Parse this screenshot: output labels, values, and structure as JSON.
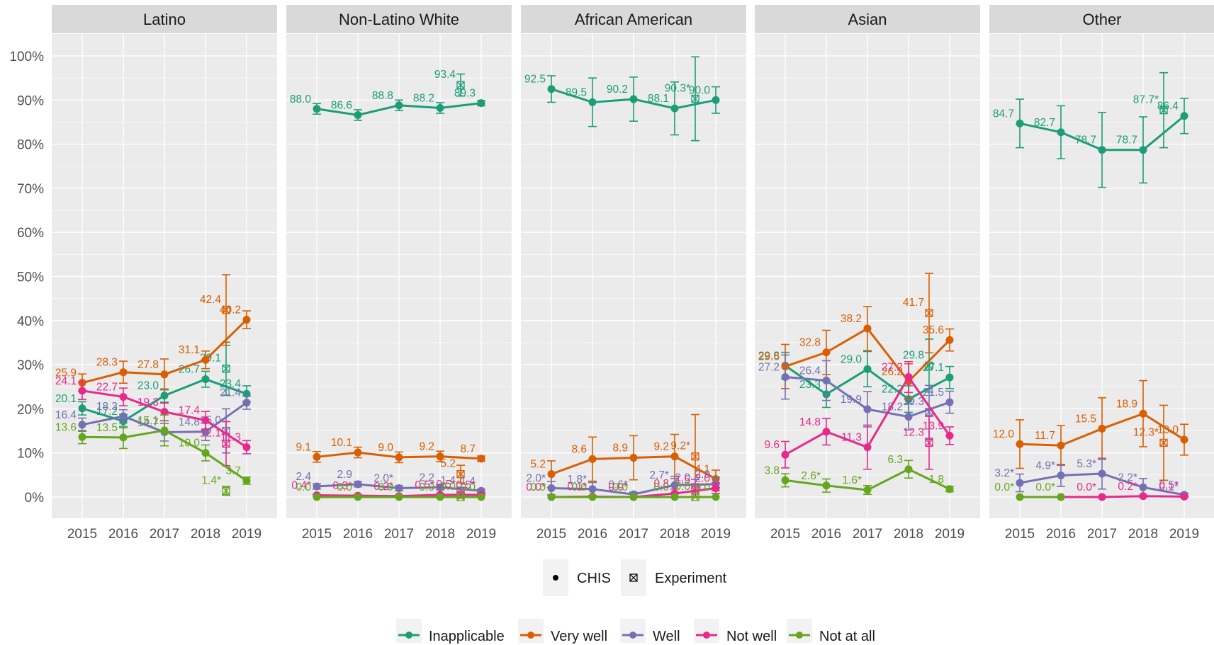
{
  "chart_data": {
    "type": "line",
    "ylim": [
      0,
      100
    ],
    "y_unit": "%",
    "y_ticks": [
      "0%",
      "10%",
      "20%",
      "30%",
      "40%",
      "50%",
      "60%",
      "70%",
      "80%",
      "90%",
      "100%"
    ],
    "x": [
      2015,
      2016,
      2017,
      2018,
      2019
    ],
    "x_tick_labels": [
      "2015",
      "2016",
      "2017",
      "2018",
      "2019"
    ],
    "grid": true,
    "facet_background": "#ebebeb",
    "strip_background": "#d9d9d9",
    "category_legend": {
      "position": "bottom",
      "items": [
        {
          "label": "Inapplicable",
          "color": "#1b9e77"
        },
        {
          "label": "Very well",
          "color": "#d95f02"
        },
        {
          "label": "Well",
          "color": "#7570b3"
        },
        {
          "label": "Not well",
          "color": "#e7298a"
        },
        {
          "label": "Not at all",
          "color": "#66a61e"
        }
      ]
    },
    "source_legend": {
      "position": "bottom",
      "items": [
        {
          "label": "CHIS",
          "icon": "filled-dot"
        },
        {
          "label": "Experiment",
          "icon": "boxed-x"
        }
      ]
    },
    "panels": [
      {
        "title": "Latino",
        "series": [
          {
            "name": "Inapplicable",
            "values": [
              20.1,
              17.2,
              23.0,
              26.7,
              23.4
            ],
            "labels": [
              "20.1",
              "17.2",
              "23.0",
              "26.7",
              "23.4"
            ],
            "err": [
              1.5,
              1.5,
              1.5,
              1.8,
              1.8
            ],
            "experiment": {
              "value": 29.1,
              "label": "29.1",
              "err": 6
            }
          },
          {
            "name": "Very well",
            "values": [
              25.9,
              28.3,
              27.8,
              31.1,
              40.2
            ],
            "labels": [
              "25.9",
              "28.3",
              "27.8",
              "31.1",
              "40.2"
            ],
            "err": [
              2,
              2.5,
              3.5,
              2,
              2
            ],
            "experiment": {
              "value": 42.4,
              "label": "42.4",
              "err": 8
            }
          },
          {
            "name": "Well",
            "values": [
              16.4,
              18.3,
              14.7,
              14.8,
              21.4
            ],
            "labels": [
              "16.4",
              "18.3",
              "14.7",
              "14.8",
              "21.4"
            ],
            "err": [
              1.5,
              1.5,
              2,
              2,
              1.5
            ],
            "experiment": {
              "value": 15.0,
              "label": "15.0",
              "err": 5
            }
          },
          {
            "name": "Not well",
            "values": [
              24.1,
              22.7,
              19.3,
              17.4,
              11.3
            ],
            "labels": [
              "24.1",
              "22.7",
              "19.3",
              "17.4",
              "11.3"
            ],
            "err": [
              2,
              2,
              2,
              2,
              1.5
            ],
            "experiment": {
              "value": 12.1,
              "label": "12.1",
              "err": 5
            }
          },
          {
            "name": "Not at all",
            "values": [
              13.6,
              13.5,
              15.1,
              10.0,
              3.7
            ],
            "labels": [
              "13.6",
              "13.5",
              "15.1",
              "10.0",
              "3.7"
            ],
            "err": [
              1.5,
              2.5,
              3.5,
              1.8,
              0.8
            ],
            "experiment": {
              "value": 1.4,
              "label": "1.4*",
              "err": 1
            }
          }
        ]
      },
      {
        "title": "Non-Latino White",
        "series": [
          {
            "name": "Inapplicable",
            "values": [
              88.0,
              86.6,
              88.8,
              88.2,
              89.3
            ],
            "labels": [
              "88.0",
              "86.6",
              "88.8",
              "88.2",
              "89.3"
            ],
            "err": [
              1.2,
              1.2,
              1.2,
              1.2,
              0.6
            ],
            "experiment": {
              "value": 93.4,
              "label": "93.4",
              "err": 2.5
            }
          },
          {
            "name": "Very well",
            "values": [
              9.1,
              10.1,
              9.0,
              9.2,
              8.7
            ],
            "labels": [
              "9.1",
              "10.1",
              "9.0",
              "9.2",
              "8.7"
            ],
            "err": [
              1.2,
              1.2,
              1.2,
              1.2,
              0.6
            ],
            "experiment": {
              "value": 5.2,
              "label": "5.2",
              "err": 2
            }
          },
          {
            "name": "Well",
            "values": [
              2.4,
              2.9,
              2.0,
              2.2,
              1.4
            ],
            "labels": [
              "2.4",
              "2.9",
              "2.0*",
              "2.2",
              "1.4"
            ],
            "err": [
              0.6,
              0.6,
              0.6,
              0.6,
              0.4
            ],
            "experiment": {
              "value": 1.4,
              "label": "1.4",
              "err": 0.8
            }
          },
          {
            "name": "Not well",
            "values": [
              0.4,
              0.3,
              0.2,
              0.5,
              0.5
            ],
            "labels": [
              "0.4*",
              "0.3*",
              "0.2*",
              "0.5*",
              "0.5*"
            ],
            "err": [
              0.2,
              0.2,
              0.2,
              0.2,
              0.2
            ],
            "experiment": {
              "value": 0.5,
              "label": "0.5*",
              "err": 0.4
            }
          },
          {
            "name": "Not at all",
            "values": [
              0.0,
              0.0,
              0.0,
              0.0,
              0.0
            ],
            "labels": [
              "0.0",
              "0.0",
              "0.0",
              "0.0",
              "0.0"
            ],
            "err": [
              0,
              0,
              0,
              0,
              0
            ],
            "experiment": {
              "value": 0.0,
              "label": "0.0",
              "err": 0
            }
          }
        ]
      },
      {
        "title": "African American",
        "series": [
          {
            "name": "Inapplicable",
            "values": [
              92.5,
              89.5,
              90.2,
              88.1,
              90.0
            ],
            "labels": [
              "92.5",
              "89.5",
              "90.2",
              "88.1",
              "90.0"
            ],
            "err": [
              3,
              5.5,
              5,
              6,
              3
            ],
            "experiment": {
              "value": 90.3,
              "label": "90.3*",
              "err": 9.5
            }
          },
          {
            "name": "Very well",
            "values": [
              5.2,
              8.6,
              8.9,
              9.2,
              4.1
            ],
            "labels": [
              "5.2",
              "8.6",
              "8.9",
              "9.2",
              "4.1"
            ],
            "err": [
              3,
              5,
              5,
              5,
              2
            ],
            "experiment": {
              "value": 9.2,
              "label": "9.2*",
              "err": 9.5
            }
          },
          {
            "name": "Well",
            "values": [
              2.0,
              1.8,
              0.6,
              2.7,
              2.9
            ],
            "labels": [
              "2.0*",
              "1.8*",
              "0.6*",
              "2.7*",
              "2.9"
            ],
            "err": [
              1.5,
              1.5,
              0.5,
              2,
              1.5
            ],
            "experiment": {
              "value": 2.0,
              "label": "2.0",
              "err": 2
            }
          },
          {
            "name": "Not well",
            "values": [
              0.0,
              0.1,
              0.0,
              0.8,
              2.0
            ],
            "labels": [
              "0.0*",
              "0.1*",
              "0.0*",
              "0.8",
              "2.0"
            ],
            "err": [
              0,
              0.2,
              0,
              1,
              1.2
            ],
            "experiment": {
              "value": 1.5,
              "label": "1.5",
              "err": 1.5
            }
          },
          {
            "name": "Not at all",
            "values": [
              0.0,
              0.0,
              0.0,
              0.0,
              0.0
            ],
            "labels": [
              "0.0",
              "0.0",
              "0.0",
              "0.0",
              "0.0"
            ],
            "err": [
              0,
              0,
              0,
              0,
              0
            ],
            "experiment": {
              "value": 0.0,
              "label": "0.0",
              "err": 0
            }
          }
        ]
      },
      {
        "title": "Asian",
        "series": [
          {
            "name": "Inapplicable",
            "values": [
              29.8,
              23.3,
              29.0,
              22.2,
              27.1
            ],
            "labels": [
              "29.8",
              "23.3",
              "29.0",
              "22.2",
              "27.1"
            ],
            "err": [
              3,
              3,
              4,
              3,
              2.5
            ],
            "experiment": {
              "value": 29.8,
              "label": "29.8",
              "err": 6
            }
          },
          {
            "name": "Very well",
            "values": [
              29.6,
              32.8,
              38.2,
              26.2,
              35.6
            ],
            "labels": [
              "29.6",
              "32.8",
              "38.2",
              "26.2",
              "35.6"
            ],
            "err": [
              5,
              5,
              5,
              4,
              2.5
            ],
            "experiment": {
              "value": 41.7,
              "label": "41.7",
              "err": 9
            }
          },
          {
            "name": "Well",
            "values": [
              27.2,
              26.4,
              19.9,
              18.2,
              21.5
            ],
            "labels": [
              "27.2",
              "26.4",
              "19.9",
              "18.2",
              "21.5"
            ],
            "err": [
              5,
              4.5,
              4,
              3,
              2.5
            ],
            "experiment": {
              "value": 19.3,
              "label": "19.3",
              "err": 6
            }
          },
          {
            "name": "Not well",
            "values": [
              9.6,
              14.8,
              11.3,
              27.2,
              13.9
            ],
            "labels": [
              "9.6",
              "14.8",
              "11.3",
              "27.2",
              "13.9"
            ],
            "err": [
              3,
              3,
              5,
              3.5,
              2
            ],
            "experiment": {
              "value": 12.3,
              "label": "12.3",
              "err": 6
            }
          },
          {
            "name": "Not at all",
            "values": [
              3.8,
              2.6,
              1.6,
              6.3,
              1.8
            ],
            "labels": [
              "3.8",
              "2.6*",
              "1.6*",
              "6.3",
              "1.8"
            ],
            "err": [
              1.5,
              1.5,
              1,
              2,
              0.6
            ],
            "experiment": null
          }
        ]
      },
      {
        "title": "Other",
        "series": [
          {
            "name": "Inapplicable",
            "values": [
              84.7,
              82.7,
              78.7,
              78.7,
              86.4
            ],
            "labels": [
              "84.7",
              "82.7",
              "78.7",
              "78.7",
              "86.4"
            ],
            "err": [
              5.5,
              6,
              8.5,
              7.5,
              4
            ],
            "experiment": {
              "value": 87.7,
              "label": "87.7*",
              "err": 8.5
            }
          },
          {
            "name": "Very well",
            "values": [
              12.0,
              11.7,
              15.5,
              18.9,
              13.0
            ],
            "labels": [
              "12.0",
              "11.7",
              "15.5",
              "18.9",
              "13.0"
            ],
            "err": [
              5.5,
              4.5,
              7,
              7.5,
              3.5
            ],
            "experiment": {
              "value": 12.3,
              "label": "12.3*",
              "err": 8.5
            }
          },
          {
            "name": "Well",
            "values": [
              3.2,
              4.9,
              5.3,
              2.2,
              0.5
            ],
            "labels": [
              "3.2*",
              "4.9*",
              "5.3*",
              "2.2*",
              "0.5*"
            ],
            "err": [
              2,
              2.5,
              3.5,
              2,
              0.4
            ],
            "experiment": null
          },
          {
            "name": "Not well",
            "values": [
              null,
              0.0,
              0.0,
              0.2,
              0.1
            ],
            "labels": [
              "",
              "",
              "0.0*",
              "0.2*",
              "0.1*"
            ],
            "err": [
              0,
              0,
              0,
              0.2,
              0.2
            ],
            "experiment": null
          },
          {
            "name": "Not at all",
            "values": [
              0.0,
              0.0,
              null,
              null,
              null
            ],
            "labels": [
              "0.0*",
              "0.0*",
              "",
              "",
              ""
            ],
            "err": [
              0,
              0,
              0,
              0,
              0
            ],
            "experiment": null
          }
        ]
      }
    ]
  }
}
